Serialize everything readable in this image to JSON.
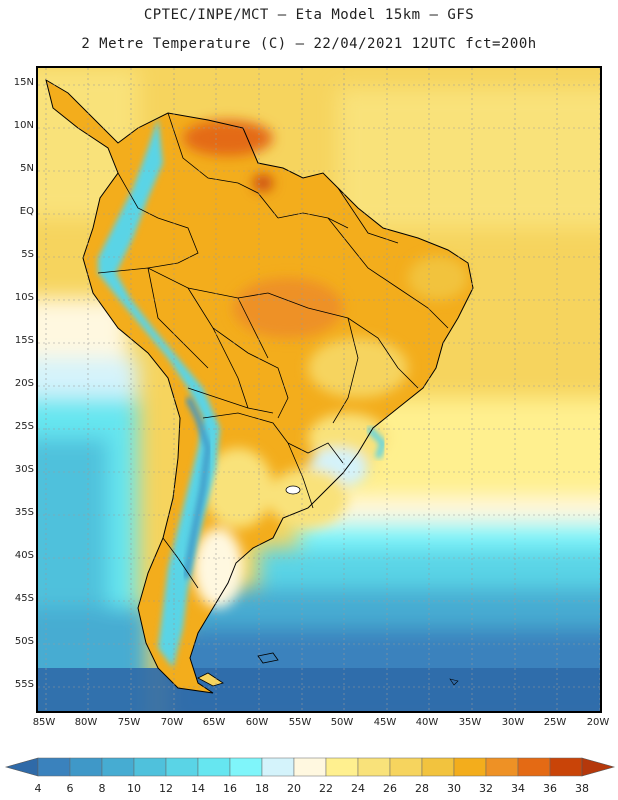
{
  "header": {
    "line1": "CPTEC/INPE/MCT –  Eta Model 15km – GFS",
    "line2": "2 Metre Temperature (C) – 22/04/2021 12UTC fct=200h"
  },
  "map": {
    "lat_ticks": [
      "15N",
      "10N",
      "5N",
      "EQ",
      "5S",
      "10S",
      "15S",
      "20S",
      "25S",
      "30S",
      "35S",
      "40S",
      "45S",
      "50S",
      "55S"
    ],
    "lon_ticks": [
      "85W",
      "80W",
      "75W",
      "70W",
      "65W",
      "60W",
      "55W",
      "50W",
      "45W",
      "40W",
      "35W",
      "30W",
      "25W",
      "20W"
    ]
  },
  "colorbar": {
    "labels": [
      "4",
      "6",
      "8",
      "10",
      "12",
      "14",
      "16",
      "18",
      "20",
      "22",
      "24",
      "26",
      "28",
      "30",
      "32",
      "34",
      "36",
      "38"
    ],
    "colors": [
      "#2f6aa8",
      "#3a82bd",
      "#3f98c8",
      "#46acd2",
      "#4fc1dc",
      "#5ad4e6",
      "#66e6f0",
      "#7ff5fa",
      "#d4f3fb",
      "#fff8e0",
      "#fff08f",
      "#f9e27a",
      "#f6d45e",
      "#f2c33e",
      "#f3ad1c",
      "#ee9125",
      "#e46a14",
      "#c94408",
      "#b5380b"
    ]
  }
}
